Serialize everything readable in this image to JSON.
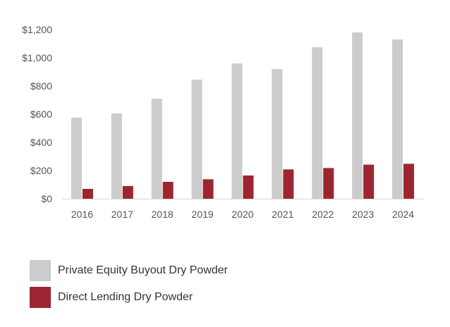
{
  "chart_data": {
    "type": "bar",
    "title": "",
    "xlabel": "",
    "ylabel": "",
    "categories": [
      "2016",
      "2017",
      "2018",
      "2019",
      "2020",
      "2021",
      "2022",
      "2023",
      "2024"
    ],
    "series": [
      {
        "name": "Private Equity Buyout Dry Powder",
        "color": "#cccccc",
        "values": [
          575,
          605,
          710,
          845,
          960,
          920,
          1075,
          1180,
          1130
        ]
      },
      {
        "name": "Direct Lending Dry Powder",
        "color": "#9b2632",
        "values": [
          70,
          90,
          120,
          138,
          165,
          208,
          218,
          242,
          248
        ]
      }
    ],
    "ylim": [
      0,
      1200
    ],
    "yticks": [
      0,
      200,
      400,
      600,
      800,
      1000,
      1200
    ],
    "ytick_labels": [
      "$0",
      "$200",
      "$400",
      "$600",
      "$800",
      "$1,000",
      "$1,200"
    ],
    "grid": false,
    "legend": "bottom-left"
  }
}
